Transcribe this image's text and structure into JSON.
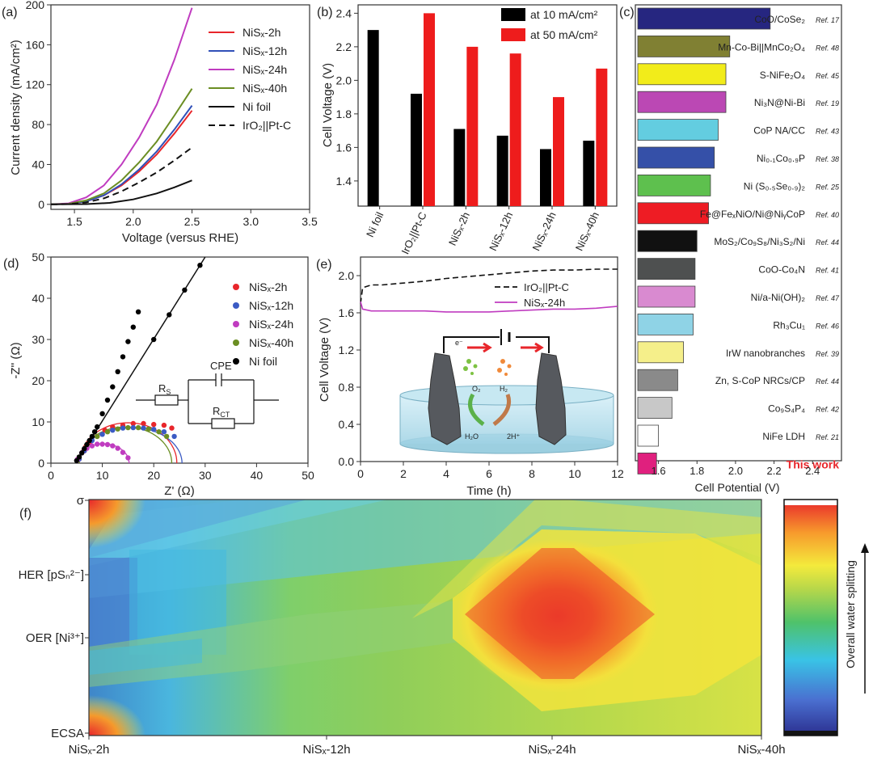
{
  "panel_labels": {
    "a": "(a)",
    "b": "(b)",
    "c": "(c)",
    "d": "(d)",
    "e": "(e)",
    "f": "(f)"
  },
  "chart_data": [
    {
      "id": "a",
      "type": "line",
      "xlabel": "Voltage (versus RHE)",
      "ylabel": "Current density (mA/cm²)",
      "xlim": [
        1.3,
        3.5
      ],
      "ylim": [
        -5,
        200
      ],
      "xticks": [
        "1.5",
        "2.0",
        "2.5",
        "3.0",
        "3.5"
      ],
      "yticks": [
        "0",
        "40",
        "80",
        "120",
        "160",
        "200"
      ],
      "legend_location": "top-right",
      "series": [
        {
          "name": "NiSx-2h",
          "label": "NiSₓ-2h",
          "color": "#e8262b",
          "dash": "",
          "x": [
            1.3,
            1.45,
            1.6,
            1.75,
            1.9,
            2.05,
            2.2,
            2.35,
            2.5
          ],
          "y": [
            0,
            0.5,
            3,
            9,
            19,
            33,
            50,
            71,
            94
          ]
        },
        {
          "name": "NiSx-12h",
          "label": "NiSₓ-12h",
          "color": "#3150b8",
          "dash": "",
          "x": [
            1.3,
            1.45,
            1.6,
            1.75,
            1.9,
            2.05,
            2.2,
            2.35,
            2.5
          ],
          "y": [
            0,
            0.5,
            3,
            9,
            20,
            35,
            53,
            75,
            99
          ]
        },
        {
          "name": "NiSx-24h",
          "label": "NiSₓ-24h",
          "color": "#c03cc0",
          "dash": "",
          "x": [
            1.3,
            1.45,
            1.6,
            1.75,
            1.9,
            2.05,
            2.2,
            2.35,
            2.5
          ],
          "y": [
            0,
            1,
            7,
            19,
            40,
            67,
            100,
            145,
            197
          ]
        },
        {
          "name": "NiSx-40h",
          "label": "NiSₓ-40h",
          "color": "#6b8e23",
          "dash": "",
          "x": [
            1.3,
            1.45,
            1.6,
            1.75,
            1.9,
            2.05,
            2.2,
            2.35,
            2.5
          ],
          "y": [
            0,
            0.5,
            4,
            11,
            24,
            42,
            63,
            89,
            116
          ]
        },
        {
          "name": "Ni foil",
          "label": "Ni foil",
          "color": "#111111",
          "dash": "",
          "x": [
            1.3,
            1.6,
            1.8,
            2.0,
            2.2,
            2.35,
            2.5
          ],
          "y": [
            0,
            0.3,
            1.5,
            5,
            11,
            17,
            24
          ]
        },
        {
          "name": "IrO2||Pt-C",
          "label": "IrO₂||Pt-C",
          "color": "#111111",
          "dash": "8 5",
          "x": [
            1.3,
            1.45,
            1.6,
            1.75,
            1.9,
            2.05,
            2.2,
            2.35,
            2.5
          ],
          "y": [
            0,
            0.3,
            2,
            6,
            13,
            22,
            32,
            44,
            57
          ]
        }
      ]
    },
    {
      "id": "b",
      "type": "bar",
      "ylabel": "Cell Voltage (V)",
      "ylim": [
        1.25,
        2.45
      ],
      "yticks": [
        "1.4",
        "1.6",
        "1.8",
        "2.0",
        "2.2",
        "2.4"
      ],
      "categories": [
        "Ni foil",
        "IrO₂||Pt-C",
        "NiSₓ-2h",
        "NiSₓ-12h",
        "NiSₓ-24h",
        "NiSₓ-40h"
      ],
      "legend_location": "top-right",
      "series": [
        {
          "name": "at 10 mA/cm²",
          "color": "#000000",
          "values": [
            2.3,
            1.92,
            1.71,
            1.67,
            1.59,
            1.64
          ]
        },
        {
          "name": "at 50 mA/cm²",
          "color": "#ee1c1c",
          "values": [
            null,
            2.4,
            2.2,
            2.16,
            1.9,
            2.07
          ]
        }
      ]
    },
    {
      "id": "c",
      "type": "bar",
      "orientation": "horizontal",
      "xlabel": "Cell Potential (V)",
      "xlim": [
        1.48,
        2.55
      ],
      "xticks": [
        "1.6",
        "1.8",
        "2.0",
        "2.2",
        "2.4"
      ],
      "items": [
        {
          "label": "CoO/CoSe₂",
          "ref": "Ref. 17",
          "value": 2.18,
          "color": "#262680"
        },
        {
          "label": "Mn-Co-Bi||MnCo₂O₄",
          "ref": "Ref. 48",
          "value": 1.97,
          "color": "#808033"
        },
        {
          "label": "S-NiFe₂O₄",
          "ref": "Ref. 45",
          "value": 1.95,
          "color": "#f2ec1a"
        },
        {
          "label": "Ni₃N@Ni-Bi",
          "ref": "Ref. 19",
          "value": 1.95,
          "color": "#bb48b4"
        },
        {
          "label": "CoP NA/CC",
          "ref": "Ref. 43",
          "value": 1.91,
          "color": "#63cde0"
        },
        {
          "label": "Ni₀.₁Co₀.₉P",
          "ref": "Ref. 38",
          "value": 1.89,
          "color": "#3550a8"
        },
        {
          "label": "Ni (S₀.₅Se₀.₉)₂",
          "ref": "Ref. 25",
          "value": 1.87,
          "color": "#5ec04e"
        },
        {
          "label": "Fe@FeₓNiO/Ni@NiᵧCoP",
          "ref": "Ref. 40",
          "value": 1.86,
          "color": "#ee1c24"
        },
        {
          "label": "MoS₂/Co₉S₈/Ni₃S₂/Ni",
          "ref": "Ref. 44",
          "value": 1.8,
          "color": "#111111"
        },
        {
          "label": "CoO-Co₄N",
          "ref": "Ref. 41",
          "value": 1.79,
          "color": "#4e5050"
        },
        {
          "label": "Ni/a-Ni(OH)₂",
          "ref": "Ref. 47",
          "value": 1.79,
          "color": "#d98ad0"
        },
        {
          "label": "Rh₃Cu₁",
          "ref": "Ref. 46",
          "value": 1.78,
          "color": "#8fd3e6"
        },
        {
          "label": "IrW nanobranches",
          "ref": "Ref. 39",
          "value": 1.73,
          "color": "#f5ef8a"
        },
        {
          "label": "Zn, S-CoP NRCs/CP",
          "ref": "Ref. 44",
          "value": 1.7,
          "color": "#8a8a8a"
        },
        {
          "label": "Co₉S₄P₄",
          "ref": "Ref. 42",
          "value": 1.67,
          "color": "#c8c8c8"
        },
        {
          "label": "NiFe LDH",
          "ref": "Ref. 21",
          "value": 1.6,
          "color": "#ffffff"
        },
        {
          "label": "This work",
          "ref": "",
          "value": 1.59,
          "color": "#e0207e",
          "highlight": true
        }
      ]
    },
    {
      "id": "d",
      "type": "scatter",
      "xlabel": "Z' (Ω)",
      "ylabel": "-Z'' (Ω)",
      "xlim": [
        0,
        50
      ],
      "ylim": [
        0,
        50
      ],
      "xticks": [
        "0",
        "10",
        "20",
        "30",
        "40",
        "50"
      ],
      "yticks": [
        "0",
        "10",
        "20",
        "30",
        "40",
        "50"
      ],
      "legend_location": "top-right",
      "circuit_labels": {
        "cpe": "CPE",
        "rs": "R",
        "rs_sub": "S",
        "rct": "R",
        "rct_sub": "CT"
      },
      "series": [
        {
          "name": "NiSx-2h",
          "label": "NiSₓ-2h",
          "color": "#e8262b",
          "x": [
            5.5,
            6.5,
            7.5,
            9,
            10.5,
            12,
            14,
            16,
            18,
            20,
            22,
            23.5
          ],
          "y": [
            1,
            3,
            5,
            6.5,
            8,
            8.8,
            9.2,
            9.6,
            9.6,
            9.4,
            9.2,
            8.5
          ]
        },
        {
          "name": "NiSx-12h",
          "label": "NiSₓ-12h",
          "color": "#3b5bc4",
          "x": [
            5.5,
            6.5,
            8,
            10,
            12,
            14,
            16,
            18,
            20,
            22,
            24
          ],
          "y": [
            1,
            3,
            5.5,
            7,
            8,
            8.5,
            8.6,
            8.5,
            8.2,
            7.6,
            6.5
          ]
        },
        {
          "name": "NiSx-24h",
          "label": "NiSₓ-24h",
          "color": "#c03cc0",
          "x": [
            5.2,
            6,
            7,
            8,
            9,
            10,
            11,
            12,
            13,
            14,
            15
          ],
          "y": [
            1,
            2.5,
            3.6,
            4.2,
            4.6,
            4.6,
            4.5,
            4.2,
            3.6,
            2.6,
            1.3
          ]
        },
        {
          "name": "NiSx-40h",
          "label": "NiSₓ-40h",
          "color": "#6b8e23",
          "x": [
            5.5,
            7,
            9,
            11,
            13,
            15,
            17,
            19,
            21,
            22.5
          ],
          "y": [
            1.5,
            4.5,
            6.5,
            7.6,
            8.3,
            8.6,
            8.6,
            8.3,
            7.6,
            6.5
          ]
        },
        {
          "name": "Ni foil",
          "label": "Ni foil",
          "color": "#000000",
          "line": true,
          "x": [
            5,
            5.5,
            6,
            6.5,
            7,
            7.5,
            8,
            8.5,
            9,
            10,
            11,
            12,
            13,
            14,
            15,
            16,
            17
          ],
          "y": [
            0.6,
            1.5,
            2.5,
            3.5,
            4.5,
            5.5,
            6.5,
            7.6,
            8.8,
            12,
            15.3,
            18.5,
            22.2,
            25.8,
            29.5,
            33,
            36.7
          ]
        }
      ]
    },
    {
      "id": "e",
      "type": "line",
      "xlabel": "Time (h)",
      "ylabel": "Cell Voltage (V)",
      "xlim": [
        0,
        12
      ],
      "ylim": [
        0,
        2.2
      ],
      "xticks": [
        "0",
        "2",
        "4",
        "6",
        "8",
        "10",
        "12"
      ],
      "yticks": [
        "0.0",
        "0.4",
        "0.8",
        "1.2",
        "1.6",
        "2.0"
      ],
      "legend_location": "top-right",
      "schematic_labels": {
        "electron": "e⁻",
        "o2": "O₂",
        "h2": "H₂",
        "h2o": "H₂O",
        "h_plus": "2H⁺"
      },
      "series": [
        {
          "name": "IrO2||Pt-C",
          "label": "IrO₂||Pt-C",
          "color": "#111111",
          "dash": "7 4",
          "x": [
            0,
            0.1,
            0.5,
            1,
            2,
            3,
            4,
            5,
            6,
            7,
            8,
            9,
            10,
            11,
            12
          ],
          "y": [
            1.7,
            1.87,
            1.9,
            1.9,
            1.92,
            1.94,
            1.97,
            1.99,
            2.01,
            2.03,
            2.05,
            2.06,
            2.06,
            2.07,
            2.07
          ]
        },
        {
          "name": "NiSx-24h",
          "label": "NiSₓ-24h",
          "color": "#c03cc0",
          "dash": "",
          "x": [
            0,
            0.1,
            0.5,
            1,
            2,
            3,
            4,
            5,
            6,
            7,
            8,
            9,
            10,
            11,
            12
          ],
          "y": [
            1.72,
            1.64,
            1.62,
            1.62,
            1.62,
            1.62,
            1.61,
            1.61,
            1.61,
            1.62,
            1.63,
            1.64,
            1.64,
            1.65,
            1.67
          ]
        }
      ]
    },
    {
      "id": "f",
      "type": "heatmap",
      "x_labels": [
        "NiSₓ-2h",
        "NiSₓ-12h",
        "NiSₓ-24h",
        "NiSₓ-40h"
      ],
      "y_labels": [
        "σ",
        "HER [pSₙ²⁻]",
        "OER [Ni³⁺]",
        "ECSA"
      ],
      "colorbar_label": "Overall water splitting"
    }
  ]
}
